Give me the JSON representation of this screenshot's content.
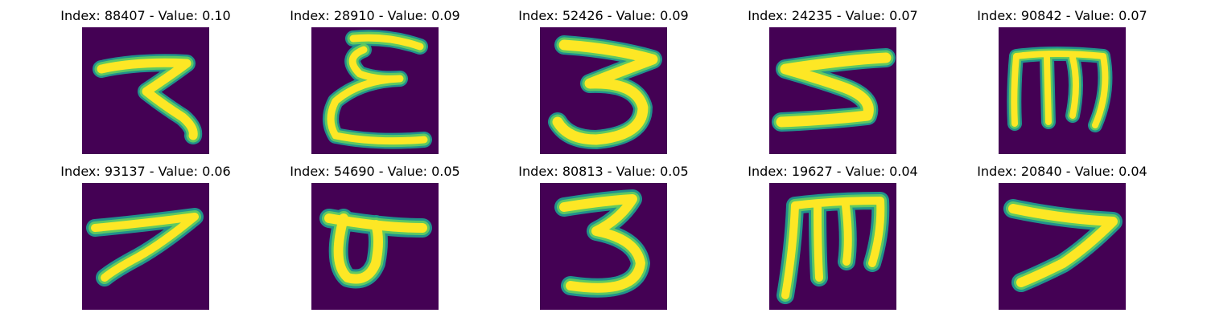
{
  "colors": {
    "background": "#440154",
    "glyph_core": "#fde725",
    "glyph_edge_1": "#5ec962",
    "glyph_edge_2": "#21918c",
    "glyph_edge_3": "#3b528b"
  },
  "panels": [
    {
      "title": "Index: 88407 - Value: 0.10",
      "glyph": "glyph-7-loop"
    },
    {
      "title": "Index: 28910 - Value: 0.09",
      "glyph": "glyph-epsilon"
    },
    {
      "title": "Index: 52426 - Value: 0.09",
      "glyph": "glyph-3-wide"
    },
    {
      "title": "Index: 24235 - Value: 0.07",
      "glyph": "glyph-5-flat"
    },
    {
      "title": "Index: 90842 - Value: 0.07",
      "glyph": "glyph-m-wide"
    },
    {
      "title": "Index: 93137 - Value: 0.06",
      "glyph": "glyph-7"
    },
    {
      "title": "Index: 54690 - Value: 0.05",
      "glyph": "glyph-o-bar"
    },
    {
      "title": "Index: 80813 - Value: 0.05",
      "glyph": "glyph-3"
    },
    {
      "title": "Index: 19627 - Value: 0.04",
      "glyph": "glyph-m"
    },
    {
      "title": "Index: 20840 - Value: 0.04",
      "glyph": "glyph-7-thick"
    }
  ]
}
